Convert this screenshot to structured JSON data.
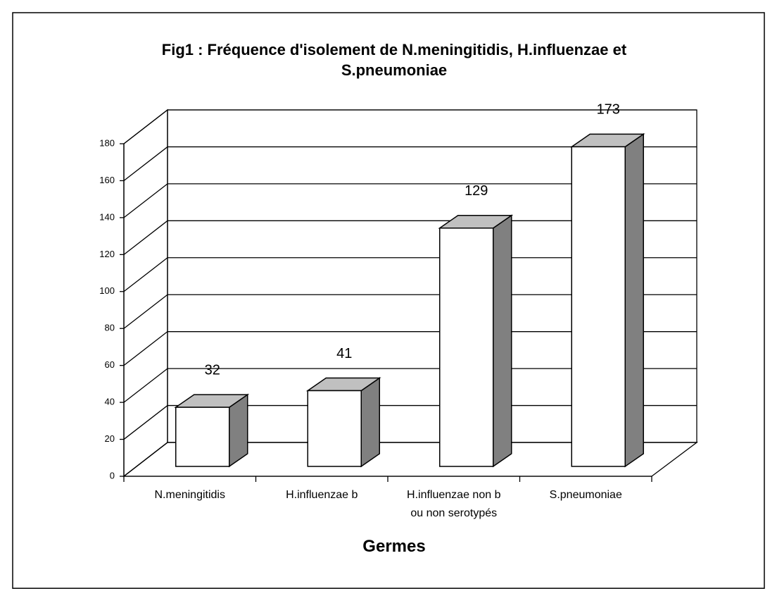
{
  "chart_data": {
    "type": "bar3d",
    "title": "Fig1 : Fréquence d'isolement de N.meningitidis, H.influenzae et\nS.pneumoniae",
    "xlabel": "Germes",
    "categories": [
      "N.meningitidis",
      "H.influenzae b",
      "H.influenzae non b\nou non serotypés",
      "S.pneumoniae"
    ],
    "values": [
      32,
      41,
      129,
      173
    ],
    "color": "#ffffff",
    "ylim": [
      0,
      180
    ],
    "yticks": [
      0,
      20,
      40,
      60,
      80,
      100,
      120,
      140,
      160,
      180
    ],
    "grid": true
  }
}
